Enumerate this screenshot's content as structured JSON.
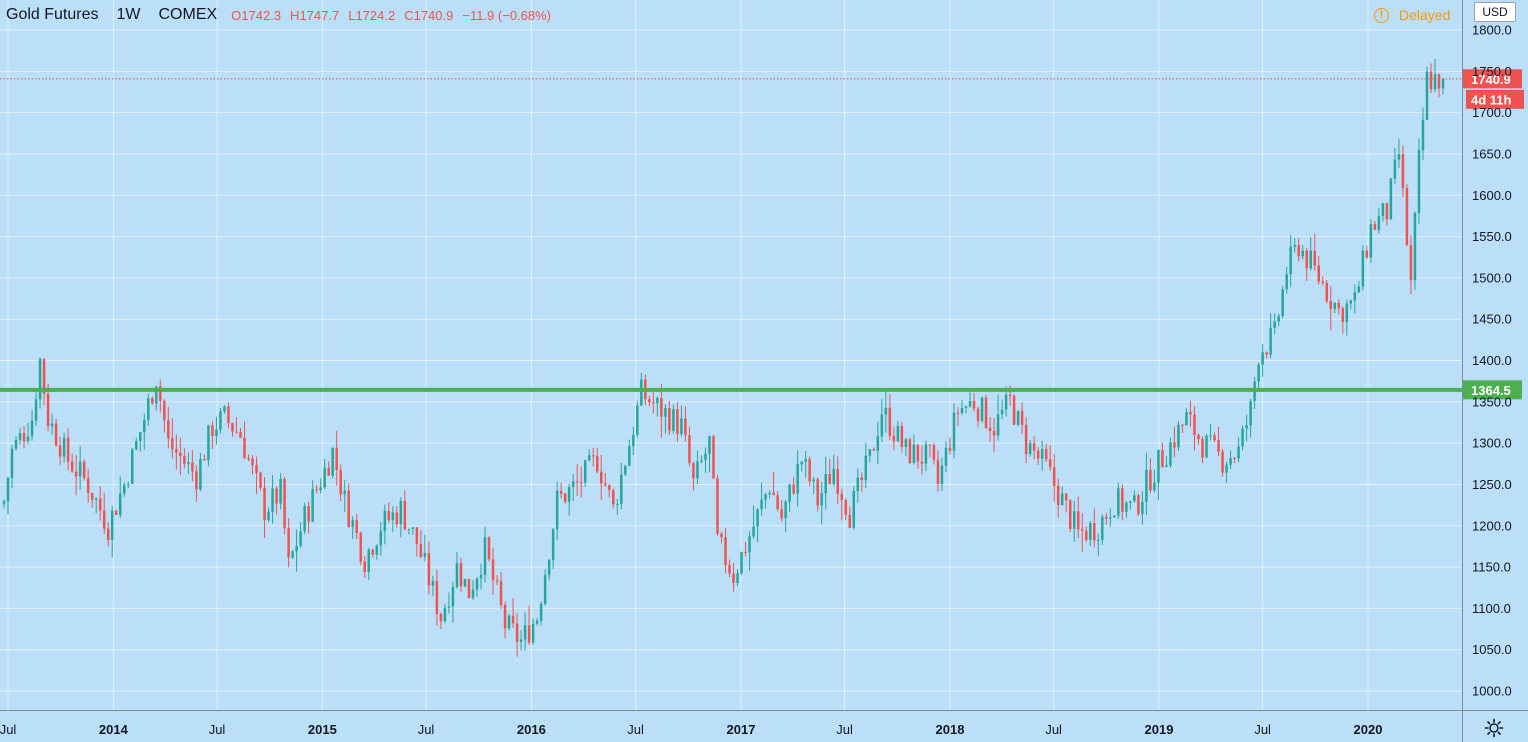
{
  "header": {
    "symbol": "Gold Futures",
    "timeframe": "1W",
    "exchange": "COMEX",
    "open_label": "O",
    "open": "1742.3",
    "high_label": "H",
    "high": "1747.7",
    "low_label": "L",
    "low": "1724.2",
    "close_label": "C",
    "close": "1740.9",
    "change": "−11.9 (−0.68%)"
  },
  "status": {
    "delayed": "Delayed",
    "delayed_symbol": "!"
  },
  "currency_button": "USD",
  "colors": {
    "background": "#bbdef9",
    "up": "#26a69a",
    "down": "#ef5350",
    "support_line": "#4caf50",
    "last_price": "#ef5350",
    "text": "#131722"
  },
  "chart_data": {
    "type": "candlestick",
    "title": "Gold Futures",
    "xlabel": "",
    "ylabel": "",
    "ylim": [
      980,
      1810
    ],
    "grid": true,
    "y_ticks": [
      "1000.0",
      "1050.0",
      "1100.0",
      "1150.0",
      "1200.0",
      "1250.0",
      "1300.0",
      "1350.0",
      "1400.0",
      "1450.0",
      "1500.0",
      "1550.0",
      "1600.0",
      "1650.0",
      "1700.0",
      "1750.0",
      "1800.0"
    ],
    "x_ticks": [
      {
        "label": "Jul",
        "date": "2013-07-01",
        "bold": false
      },
      {
        "label": "2014",
        "date": "2014-01-01",
        "bold": true
      },
      {
        "label": "Jul",
        "date": "2014-07-01",
        "bold": false
      },
      {
        "label": "2015",
        "date": "2015-01-01",
        "bold": true
      },
      {
        "label": "Jul",
        "date": "2015-07-01",
        "bold": false
      },
      {
        "label": "2016",
        "date": "2016-01-01",
        "bold": true
      },
      {
        "label": "Jul",
        "date": "2016-07-01",
        "bold": false
      },
      {
        "label": "2017",
        "date": "2017-01-01",
        "bold": true
      },
      {
        "label": "Jul",
        "date": "2017-07-01",
        "bold": false
      },
      {
        "label": "2018",
        "date": "2018-01-01",
        "bold": true
      },
      {
        "label": "Jul",
        "date": "2018-07-01",
        "bold": false
      },
      {
        "label": "2019",
        "date": "2019-01-01",
        "bold": true
      },
      {
        "label": "Jul",
        "date": "2019-07-01",
        "bold": false
      },
      {
        "label": "2020",
        "date": "2020-01-01",
        "bold": true
      }
    ],
    "date_range": [
      "2013-06-24",
      "2020-05-11"
    ],
    "close_path": [
      [
        "2013-06-24",
        1230
      ],
      [
        "2013-07-08",
        1290
      ],
      [
        "2013-08-12",
        1330
      ],
      [
        "2013-08-26",
        1400
      ],
      [
        "2013-09-09",
        1330
      ],
      [
        "2013-10-14",
        1280
      ],
      [
        "2013-11-18",
        1250
      ],
      [
        "2013-12-23",
        1200
      ],
      [
        "2014-01-20",
        1250
      ],
      [
        "2014-02-24",
        1330
      ],
      [
        "2014-03-17",
        1380
      ],
      [
        "2014-04-07",
        1300
      ],
      [
        "2014-05-26",
        1260
      ],
      [
        "2014-06-23",
        1320
      ],
      [
        "2014-07-14",
        1330
      ],
      [
        "2014-08-11",
        1310
      ],
      [
        "2014-09-22",
        1220
      ],
      [
        "2014-10-20",
        1240
      ],
      [
        "2014-11-03",
        1150
      ],
      [
        "2014-12-01",
        1210
      ],
      [
        "2015-01-19",
        1290
      ],
      [
        "2015-02-09",
        1230
      ],
      [
        "2015-03-16",
        1160
      ],
      [
        "2015-04-13",
        1200
      ],
      [
        "2015-05-18",
        1220
      ],
      [
        "2015-06-15",
        1180
      ],
      [
        "2015-07-27",
        1090
      ],
      [
        "2015-08-24",
        1150
      ],
      [
        "2015-09-14",
        1120
      ],
      [
        "2015-10-12",
        1170
      ],
      [
        "2015-11-16",
        1080
      ],
      [
        "2015-12-14",
        1060
      ],
      [
        "2016-01-11",
        1090
      ],
      [
        "2016-02-15",
        1230
      ],
      [
        "2016-03-21",
        1250
      ],
      [
        "2016-04-25",
        1280
      ],
      [
        "2016-05-23",
        1220
      ],
      [
        "2016-06-20",
        1300
      ],
      [
        "2016-07-11",
        1360
      ],
      [
        "2016-08-15",
        1340
      ],
      [
        "2016-09-19",
        1320
      ],
      [
        "2016-10-10",
        1250
      ],
      [
        "2016-11-07",
        1300
      ],
      [
        "2016-11-21",
        1180
      ],
      [
        "2016-12-19",
        1140
      ],
      [
        "2017-01-23",
        1200
      ],
      [
        "2017-02-20",
        1250
      ],
      [
        "2017-03-13",
        1210
      ],
      [
        "2017-04-17",
        1280
      ],
      [
        "2017-05-15",
        1230
      ],
      [
        "2017-06-12",
        1270
      ],
      [
        "2017-07-10",
        1215
      ],
      [
        "2017-08-14",
        1280
      ],
      [
        "2017-09-04",
        1340
      ],
      [
        "2017-10-16",
        1290
      ],
      [
        "2017-11-27",
        1280
      ],
      [
        "2017-12-11",
        1250
      ],
      [
        "2018-01-15",
        1340
      ],
      [
        "2018-02-12",
        1350
      ],
      [
        "2018-03-19",
        1320
      ],
      [
        "2018-04-16",
        1350
      ],
      [
        "2018-05-14",
        1300
      ],
      [
        "2018-06-18",
        1270
      ],
      [
        "2018-07-16",
        1230
      ],
      [
        "2018-08-13",
        1190
      ],
      [
        "2018-09-17",
        1200
      ],
      [
        "2018-10-15",
        1230
      ],
      [
        "2018-11-19",
        1220
      ],
      [
        "2018-12-17",
        1260
      ],
      [
        "2019-01-14",
        1290
      ],
      [
        "2019-02-18",
        1330
      ],
      [
        "2019-03-18",
        1300
      ],
      [
        "2019-04-22",
        1280
      ],
      [
        "2019-05-20",
        1290
      ],
      [
        "2019-06-10",
        1340
      ],
      [
        "2019-06-24",
        1410
      ],
      [
        "2019-07-22",
        1430
      ],
      [
        "2019-08-12",
        1510
      ],
      [
        "2019-09-02",
        1540
      ],
      [
        "2019-10-07",
        1500
      ],
      [
        "2019-11-11",
        1460
      ],
      [
        "2019-12-09",
        1470
      ],
      [
        "2020-01-06",
        1560
      ],
      [
        "2020-02-03",
        1580
      ],
      [
        "2020-02-24",
        1650
      ],
      [
        "2020-03-16",
        1490
      ],
      [
        "2020-03-30",
        1640
      ],
      [
        "2020-04-13",
        1740
      ],
      [
        "2020-05-11",
        1740.9
      ]
    ],
    "series": [
      {
        "name": "",
        "type": "candlestick",
        "last_close": 1740.9
      }
    ],
    "horizontal_lines": [
      {
        "value": 1364.5,
        "label": "1364.5",
        "style": "solid"
      },
      {
        "value": 1740.9,
        "label": "1740.9",
        "style": "dotted",
        "countdown": "4d 11h"
      }
    ]
  }
}
